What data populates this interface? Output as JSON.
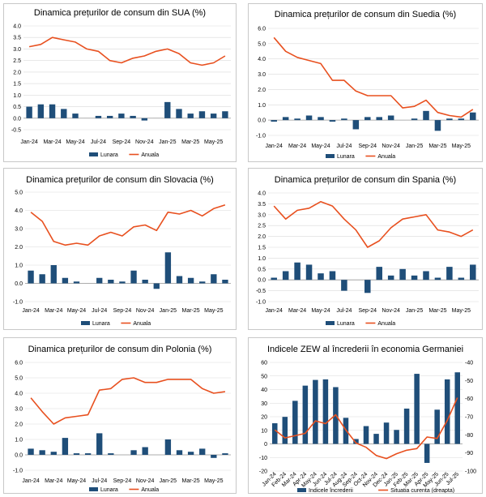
{
  "colors": {
    "bar": "#1f4e79",
    "line": "#e8501f",
    "grid": "#d9d9d9",
    "axis": "#999999"
  },
  "chart_data": [
    {
      "type": "bar+line",
      "title": "Dinamica prețurilor de consum din SUA (%)",
      "categories": [
        "Jan-24",
        "Feb-24",
        "Mar-24",
        "Apr-24",
        "May-24",
        "Jun-24",
        "Jul-24",
        "Aug-24",
        "Sep-24",
        "Oct-24",
        "Nov-24",
        "Dec-24",
        "Jan-25",
        "Feb-25",
        "Mar-25",
        "Apr-25",
        "May-25",
        "Jun-25"
      ],
      "x_tick_labels": [
        "Jan-24",
        "Mar-24",
        "May-24",
        "Jul-24",
        "Sep-24",
        "Nov-24",
        "Jan-25",
        "Mar-25",
        "May-25"
      ],
      "series": [
        {
          "name": "Lunara",
          "kind": "bar",
          "values": [
            0.5,
            0.6,
            0.6,
            0.4,
            0.2,
            0.0,
            0.1,
            0.1,
            0.2,
            0.1,
            -0.1,
            0.0,
            0.7,
            0.4,
            0.2,
            0.3,
            0.2,
            0.3
          ]
        },
        {
          "name": "Anuala",
          "kind": "line",
          "values": [
            3.1,
            3.2,
            3.5,
            3.4,
            3.3,
            3.0,
            2.9,
            2.5,
            2.4,
            2.6,
            2.7,
            2.9,
            3.0,
            2.8,
            2.4,
            2.3,
            2.4,
            2.7
          ]
        }
      ],
      "ylim": [
        -0.5,
        4.0
      ],
      "yticks": [
        "-0.5",
        "0.0",
        "0.5",
        "1.0",
        "1.5",
        "2.0",
        "2.5",
        "3.0",
        "3.5",
        "4.0"
      ]
    },
    {
      "type": "bar+line",
      "title": "Dinamica prețurilor de consum din Suedia (%)",
      "categories": [
        "Jan-24",
        "Feb-24",
        "Mar-24",
        "Apr-24",
        "May-24",
        "Jun-24",
        "Jul-24",
        "Aug-24",
        "Sep-24",
        "Oct-24",
        "Nov-24",
        "Dec-24",
        "Jan-25",
        "Feb-25",
        "Mar-25",
        "Apr-25",
        "May-25",
        "Jun-25"
      ],
      "x_tick_labels": [
        "Jan-24",
        "Mar-24",
        "May-24",
        "Jul-24",
        "Sep-24",
        "Nov-24",
        "Jan-25",
        "Mar-25",
        "May-25"
      ],
      "series": [
        {
          "name": "Lunara",
          "kind": "bar",
          "values": [
            -0.1,
            0.2,
            0.1,
            0.3,
            0.2,
            -0.1,
            0.1,
            -0.6,
            0.2,
            0.2,
            0.3,
            0.0,
            0.1,
            0.6,
            -0.7,
            0.1,
            0.1,
            0.5
          ]
        },
        {
          "name": "Anuala",
          "kind": "line",
          "values": [
            5.4,
            4.5,
            4.1,
            3.9,
            3.7,
            2.6,
            2.6,
            1.9,
            1.6,
            1.6,
            1.6,
            0.8,
            0.9,
            1.3,
            0.5,
            0.3,
            0.2,
            0.7
          ]
        }
      ],
      "ylim": [
        -1.0,
        6.0
      ],
      "yticks": [
        "-1.0",
        "0.0",
        "1.0",
        "2.0",
        "3.0",
        "4.0",
        "5.0",
        "6.0"
      ]
    },
    {
      "type": "bar+line",
      "title": "Dinamica prețurilor de consum din Slovacia (%)",
      "categories": [
        "Jan-24",
        "Feb-24",
        "Mar-24",
        "Apr-24",
        "May-24",
        "Jun-24",
        "Jul-24",
        "Aug-24",
        "Sep-24",
        "Oct-24",
        "Nov-24",
        "Dec-24",
        "Jan-25",
        "Feb-25",
        "Mar-25",
        "Apr-25",
        "May-25",
        "Jun-25"
      ],
      "x_tick_labels": [
        "Jan-24",
        "Mar-24",
        "May-24",
        "Jul-24",
        "Sep-24",
        "Nov-24",
        "Jan-25",
        "Mar-25",
        "May-25"
      ],
      "series": [
        {
          "name": "Lunara",
          "kind": "bar",
          "values": [
            0.7,
            0.5,
            1.0,
            0.3,
            0.1,
            0.0,
            0.3,
            0.2,
            0.1,
            0.7,
            0.2,
            -0.3,
            1.7,
            0.4,
            0.3,
            0.1,
            0.5,
            0.2
          ]
        },
        {
          "name": "Anuala",
          "kind": "line",
          "values": [
            3.9,
            3.4,
            2.3,
            2.1,
            2.2,
            2.1,
            2.6,
            2.8,
            2.6,
            3.1,
            3.2,
            2.9,
            3.9,
            3.8,
            4.0,
            3.7,
            4.1,
            4.3
          ]
        }
      ],
      "ylim": [
        -1.0,
        5.0
      ],
      "yticks": [
        "-1.0",
        "0.0",
        "1.0",
        "2.0",
        "3.0",
        "4.0",
        "5.0"
      ]
    },
    {
      "type": "bar+line",
      "title": "Dinamica prețurilor de consum din Spania (%)",
      "categories": [
        "Jan-24",
        "Feb-24",
        "Mar-24",
        "Apr-24",
        "May-24",
        "Jun-24",
        "Jul-24",
        "Aug-24",
        "Sep-24",
        "Oct-24",
        "Nov-24",
        "Dec-24",
        "Jan-25",
        "Feb-25",
        "Mar-25",
        "Apr-25",
        "May-25",
        "Jun-25"
      ],
      "x_tick_labels": [
        "Jan-24",
        "Mar-24",
        "May-24",
        "Jul-24",
        "Sep-24",
        "Nov-24",
        "Jan-25",
        "Mar-25",
        "May-25"
      ],
      "series": [
        {
          "name": "Lunara",
          "kind": "bar",
          "values": [
            0.1,
            0.4,
            0.8,
            0.7,
            0.3,
            0.4,
            -0.5,
            0.0,
            -0.6,
            0.6,
            0.2,
            0.5,
            0.2,
            0.4,
            0.1,
            0.6,
            0.1,
            0.7
          ]
        },
        {
          "name": "Anuala",
          "kind": "line",
          "values": [
            3.4,
            2.8,
            3.2,
            3.3,
            3.6,
            3.4,
            2.8,
            2.3,
            1.5,
            1.8,
            2.4,
            2.8,
            2.9,
            3.0,
            2.3,
            2.2,
            2.0,
            2.3
          ]
        }
      ],
      "ylim": [
        -1.0,
        4.0
      ],
      "yticks": [
        "-1.0",
        "-0.5",
        "0.0",
        "0.5",
        "1.0",
        "1.5",
        "2.0",
        "2.5",
        "3.0",
        "3.5",
        "4.0"
      ]
    },
    {
      "type": "bar+line",
      "title": "Dinamica prețurilor de consum din Polonia (%)",
      "categories": [
        "Jan-24",
        "Feb-24",
        "Mar-24",
        "Apr-24",
        "May-24",
        "Jun-24",
        "Jul-24",
        "Aug-24",
        "Sep-24",
        "Oct-24",
        "Nov-24",
        "Dec-24",
        "Jan-25",
        "Feb-25",
        "Mar-25",
        "Apr-25",
        "May-25",
        "Jun-25"
      ],
      "x_tick_labels": [
        "Jan-24",
        "Mar-24",
        "May-24",
        "Jul-24",
        "Sep-24",
        "Nov-24",
        "Jan-25",
        "Mar-25",
        "May-25"
      ],
      "series": [
        {
          "name": "Lunara",
          "kind": "bar",
          "values": [
            0.4,
            0.3,
            0.2,
            1.1,
            0.1,
            0.1,
            1.4,
            0.1,
            0.0,
            0.3,
            0.5,
            0.0,
            1.0,
            0.3,
            0.2,
            0.4,
            -0.2,
            0.1
          ]
        },
        {
          "name": "Anuala",
          "kind": "line",
          "values": [
            3.7,
            2.8,
            2.0,
            2.4,
            2.5,
            2.6,
            4.2,
            4.3,
            4.9,
            5.0,
            4.7,
            4.7,
            4.9,
            4.9,
            4.9,
            4.3,
            4.0,
            4.1
          ]
        }
      ],
      "ylim": [
        -1.0,
        6.0
      ],
      "yticks": [
        "-1.0",
        "0.0",
        "1.0",
        "2.0",
        "3.0",
        "4.0",
        "5.0",
        "6.0"
      ]
    },
    {
      "type": "bar+line",
      "title": "Indicele ZEW al încrederii în economia Germaniei",
      "categories": [
        "Jan-24",
        "Feb-24",
        "Mar-24",
        "Apr-24",
        "May-24",
        "Jun-24",
        "Jul-24",
        "Aug-24",
        "Sep-24",
        "Oct-24",
        "Nov-24",
        "Dec-24",
        "Jan-25",
        "Feb-25",
        "Mar-25",
        "Apr-25",
        "May-25",
        "Jun-25",
        "Jul-25"
      ],
      "x_tick_labels": [
        "Jan-24",
        "Feb-24",
        "Mar-24",
        "Apr-24",
        "May-24",
        "Jun-24",
        "Jul-24",
        "Aug-24",
        "Sep-24",
        "Oct-24",
        "Nov-24",
        "Dec-24",
        "Jan-25",
        "Feb-25",
        "Mar-25",
        "Apr-25",
        "May-25",
        "Jun-25",
        "Jul-25"
      ],
      "series": [
        {
          "name": "Indicele încrederii",
          "kind": "bar",
          "axis": "left",
          "values": [
            15.2,
            19.9,
            31.7,
            42.9,
            47.1,
            47.5,
            41.8,
            19.2,
            3.6,
            13.1,
            7.4,
            15.7,
            10.3,
            26.0,
            51.6,
            -14.0,
            25.2,
            47.5,
            52.7
          ]
        },
        {
          "name": "Situatia curenta (dreapta)",
          "kind": "line",
          "axis": "right",
          "values": [
            -77.3,
            -81.7,
            -80.5,
            -79.2,
            -72.3,
            -73.8,
            -68.9,
            -77.3,
            -84.5,
            -86.9,
            -91.4,
            -93.1,
            -90.4,
            -88.5,
            -87.6,
            -81.2,
            -82.0,
            -72.0,
            -59.5
          ]
        }
      ],
      "ylim": [
        -20,
        60
      ],
      "yticks": [
        "-20",
        "-10",
        "0",
        "10",
        "20",
        "30",
        "40",
        "50",
        "60"
      ],
      "y2lim": [
        -100,
        -40
      ],
      "y2ticks": [
        "-100",
        "-90",
        "-80",
        "-70",
        "-60",
        "-50",
        "-40"
      ]
    }
  ]
}
